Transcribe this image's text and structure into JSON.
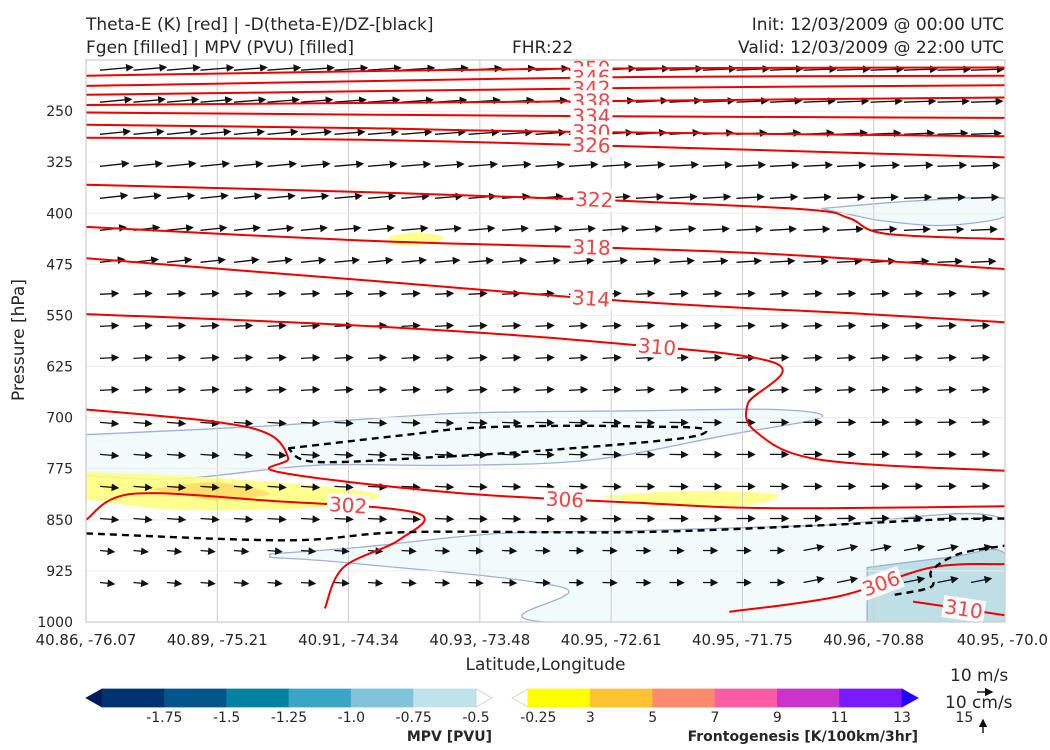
{
  "header": {
    "title_line1": "Theta-E (K) [red] | -D(theta-E)/DZ-[black]",
    "title_line2": "Fgen [filled] | MPV (PVU) [filled]",
    "fhr": "FHR:22",
    "init": "Init: 12/03/2009 @ 00:00 UTC",
    "valid": "Valid: 12/03/2009 @ 22:00 UTC"
  },
  "chart_data": {
    "type": "cross-section",
    "xlabel": "Latitude,Longitude",
    "ylabel": "Pressure [hPa]",
    "ylim": [
      1000,
      175
    ],
    "y_scale": "linear, inverted",
    "grid": true,
    "x_ticks": [
      "40.86, -76.07",
      "40.89, -75.21",
      "40.91, -74.34",
      "40.93, -73.48",
      "40.95, -72.61",
      "40.95, -71.75",
      "40.96, -70.88",
      "40.95, -70.0"
    ],
    "y_ticks": [
      250,
      325,
      400,
      475,
      550,
      625,
      700,
      775,
      850,
      925,
      1000
    ],
    "theta_e_contour_color": "#ee0000",
    "theta_e_contours": [
      {
        "label": "350",
        "points": [
          [
            0,
            198
          ],
          [
            0.5,
            188
          ],
          [
            1,
            186
          ]
        ]
      },
      {
        "label": "346",
        "points": [
          [
            0,
            213
          ],
          [
            0.35,
            205
          ],
          [
            0.6,
            200
          ],
          [
            1,
            198
          ]
        ]
      },
      {
        "label": "342",
        "points": [
          [
            0,
            226
          ],
          [
            0.3,
            221
          ],
          [
            0.6,
            216
          ],
          [
            1,
            212
          ]
        ]
      },
      {
        "label": "338",
        "points": [
          [
            0,
            241
          ],
          [
            0.5,
            236
          ],
          [
            1,
            230
          ]
        ]
      },
      {
        "label": "334",
        "points": [
          [
            0,
            252
          ],
          [
            0.5,
            257
          ],
          [
            1,
            260
          ]
        ]
      },
      {
        "label": "330",
        "points": [
          [
            0,
            270
          ],
          [
            0.3,
            275
          ],
          [
            0.5,
            280
          ],
          [
            1,
            287
          ]
        ]
      },
      {
        "label": "326",
        "points": [
          [
            0,
            289
          ],
          [
            0.3,
            292
          ],
          [
            0.6,
            302
          ],
          [
            1,
            318
          ]
        ]
      },
      {
        "label": "322",
        "points": [
          [
            0,
            358
          ],
          [
            0.28,
            368
          ],
          [
            0.55,
            380
          ],
          [
            0.78,
            394
          ],
          [
            0.83,
            407
          ],
          [
            0.87,
            430
          ],
          [
            1,
            438
          ]
        ]
      },
      {
        "label": "318",
        "points": [
          [
            0,
            420
          ],
          [
            0.3,
            440
          ],
          [
            0.55,
            450
          ],
          [
            0.75,
            460
          ],
          [
            1,
            482
          ]
        ]
      },
      {
        "label": "314",
        "points": [
          [
            0,
            466
          ],
          [
            0.3,
            498
          ],
          [
            0.6,
            530
          ],
          [
            0.85,
            548
          ],
          [
            1,
            560
          ]
        ]
      },
      {
        "label": "310",
        "points": [
          [
            0,
            548
          ],
          [
            0.3,
            565
          ],
          [
            0.55,
            588
          ],
          [
            0.75,
            620
          ],
          [
            0.72,
            680
          ],
          [
            0.73,
            722
          ],
          [
            0.8,
            762
          ],
          [
            1,
            778
          ]
        ]
      },
      {
        "label": "306",
        "points": [
          [
            0,
            688
          ],
          [
            0.14,
            706
          ],
          [
            0.2,
            725
          ],
          [
            0.22,
            760
          ],
          [
            0.21,
            780
          ],
          [
            0.4,
            810
          ],
          [
            0.6,
            825
          ],
          [
            0.75,
            833
          ],
          [
            1,
            830
          ]
        ]
      },
      {
        "label": "302",
        "points": [
          [
            0,
            850
          ],
          [
            0.05,
            812
          ],
          [
            0.2,
            822
          ],
          [
            0.36,
            840
          ],
          [
            0.34,
            880
          ],
          [
            0.28,
            920
          ],
          [
            0.26,
            980
          ]
        ]
      },
      {
        "label": "306",
        "points": [
          [
            0.7,
            985
          ],
          [
            0.82,
            962
          ],
          [
            0.92,
            920
          ],
          [
            1,
            915
          ]
        ]
      },
      {
        "label": "310",
        "points": [
          [
            0.9,
            970
          ],
          [
            1,
            990
          ]
        ]
      }
    ],
    "stability_contour_color": "#000000",
    "stability_contours": [
      {
        "points": [
          [
            0.22,
            745
          ],
          [
            0.35,
            725
          ],
          [
            0.42,
            715
          ],
          [
            0.52,
            712
          ],
          [
            0.6,
            713
          ],
          [
            0.67,
            716
          ],
          [
            0.65,
            730
          ],
          [
            0.5,
            748
          ],
          [
            0.38,
            758
          ],
          [
            0.25,
            765
          ],
          [
            0.22,
            745
          ]
        ]
      },
      {
        "points": [
          [
            0,
            870
          ],
          [
            0.22,
            880
          ],
          [
            0.35,
            868
          ],
          [
            0.6,
            868
          ],
          [
            0.8,
            858
          ],
          [
            0.92,
            850
          ],
          [
            1,
            848
          ]
        ]
      },
      {
        "points": [
          [
            0.88,
            960
          ],
          [
            0.92,
            948
          ],
          [
            0.92,
            925
          ],
          [
            0.95,
            900
          ],
          [
            1,
            888
          ]
        ]
      }
    ],
    "mpv_regions": [
      {
        "level": "-0.25",
        "color": "#f2fbfb",
        "points": [
          [
            0,
            725
          ],
          [
            0.2,
            712
          ],
          [
            0.4,
            694
          ],
          [
            0.6,
            690
          ],
          [
            0.75,
            688
          ],
          [
            0.8,
            700
          ],
          [
            0.7,
            725
          ],
          [
            0.55,
            762
          ],
          [
            0.4,
            770
          ],
          [
            0.25,
            770
          ],
          [
            0.1,
            790
          ],
          [
            0,
            785
          ]
        ]
      },
      {
        "level": "-0.25",
        "color": "#f2fbfb",
        "points": [
          [
            0.2,
            900
          ],
          [
            0.3,
            890
          ],
          [
            0.45,
            870
          ],
          [
            0.6,
            866
          ],
          [
            0.8,
            858
          ],
          [
            1,
            850
          ],
          [
            1,
            1000
          ],
          [
            0.5,
            1000
          ],
          [
            0.52,
            950
          ],
          [
            0.3,
            915
          ],
          [
            0.2,
            905
          ]
        ]
      },
      {
        "level": "-0.25",
        "color": "#f2fbfb",
        "points": [
          [
            0.8,
            393
          ],
          [
            0.9,
            382
          ],
          [
            1,
            378
          ],
          [
            1,
            405
          ],
          [
            0.93,
            418
          ],
          [
            0.86,
            410
          ]
        ]
      },
      {
        "level": "-0.5",
        "color": "#bfdfe6",
        "points": [
          [
            0.85,
            920
          ],
          [
            0.94,
            905
          ],
          [
            1,
            900
          ],
          [
            1,
            1000
          ],
          [
            0.85,
            1000
          ]
        ]
      }
    ],
    "fgen_regions": [
      {
        "level": "3",
        "color": "#ffff7a",
        "points": [
          [
            0,
            780
          ],
          [
            0.1,
            785
          ],
          [
            0.25,
            800
          ],
          [
            0.32,
            815
          ],
          [
            0.25,
            832
          ],
          [
            0.1,
            835
          ],
          [
            0,
            820
          ]
        ]
      },
      {
        "level": "3",
        "color": "#ffff7a",
        "points": [
          [
            0.56,
            815
          ],
          [
            0.65,
            808
          ],
          [
            0.75,
            812
          ],
          [
            0.72,
            828
          ],
          [
            0.62,
            830
          ]
        ]
      },
      {
        "level": "3",
        "color": "#ffff7a",
        "points": [
          [
            0.33,
            434
          ],
          [
            0.36,
            428
          ],
          [
            0.39,
            436
          ],
          [
            0.36,
            447
          ],
          [
            0.33,
            445
          ]
        ]
      },
      {
        "level": "5",
        "color": "#ffd966",
        "points": [
          [
            0.07,
            805
          ],
          [
            0.14,
            795
          ],
          [
            0.2,
            812
          ],
          [
            0.14,
            822
          ]
        ]
      }
    ],
    "wind_vectors_note": "wind barbs/vectors shown across cross-section",
    "legend_wind": {
      "horizontal": "10 m/s",
      "vertical": "10 cm/s"
    },
    "colorbars": [
      {
        "label": "MPV [PVU]",
        "ticks": [
          "-1.75",
          "-1.5",
          "-1.25",
          "-1.0",
          "-0.75",
          "-0.5",
          "-0.25"
        ],
        "colors": [
          "#001a5c",
          "#003370",
          "#00558a",
          "#0083a3",
          "#38a6c4",
          "#7fc4d8",
          "#bfe3eb",
          "#ffffff"
        ]
      },
      {
        "label": "Frontogenesis [K/100km/3hr]",
        "ticks": [
          "3",
          "5",
          "7",
          "9",
          "11",
          "13",
          "15"
        ],
        "colors": [
          "#ffffff",
          "#ffff00",
          "#ffc233",
          "#ff8a6e",
          "#ff5ca6",
          "#cc33cc",
          "#7a1aff",
          "#2600ff"
        ]
      }
    ]
  }
}
